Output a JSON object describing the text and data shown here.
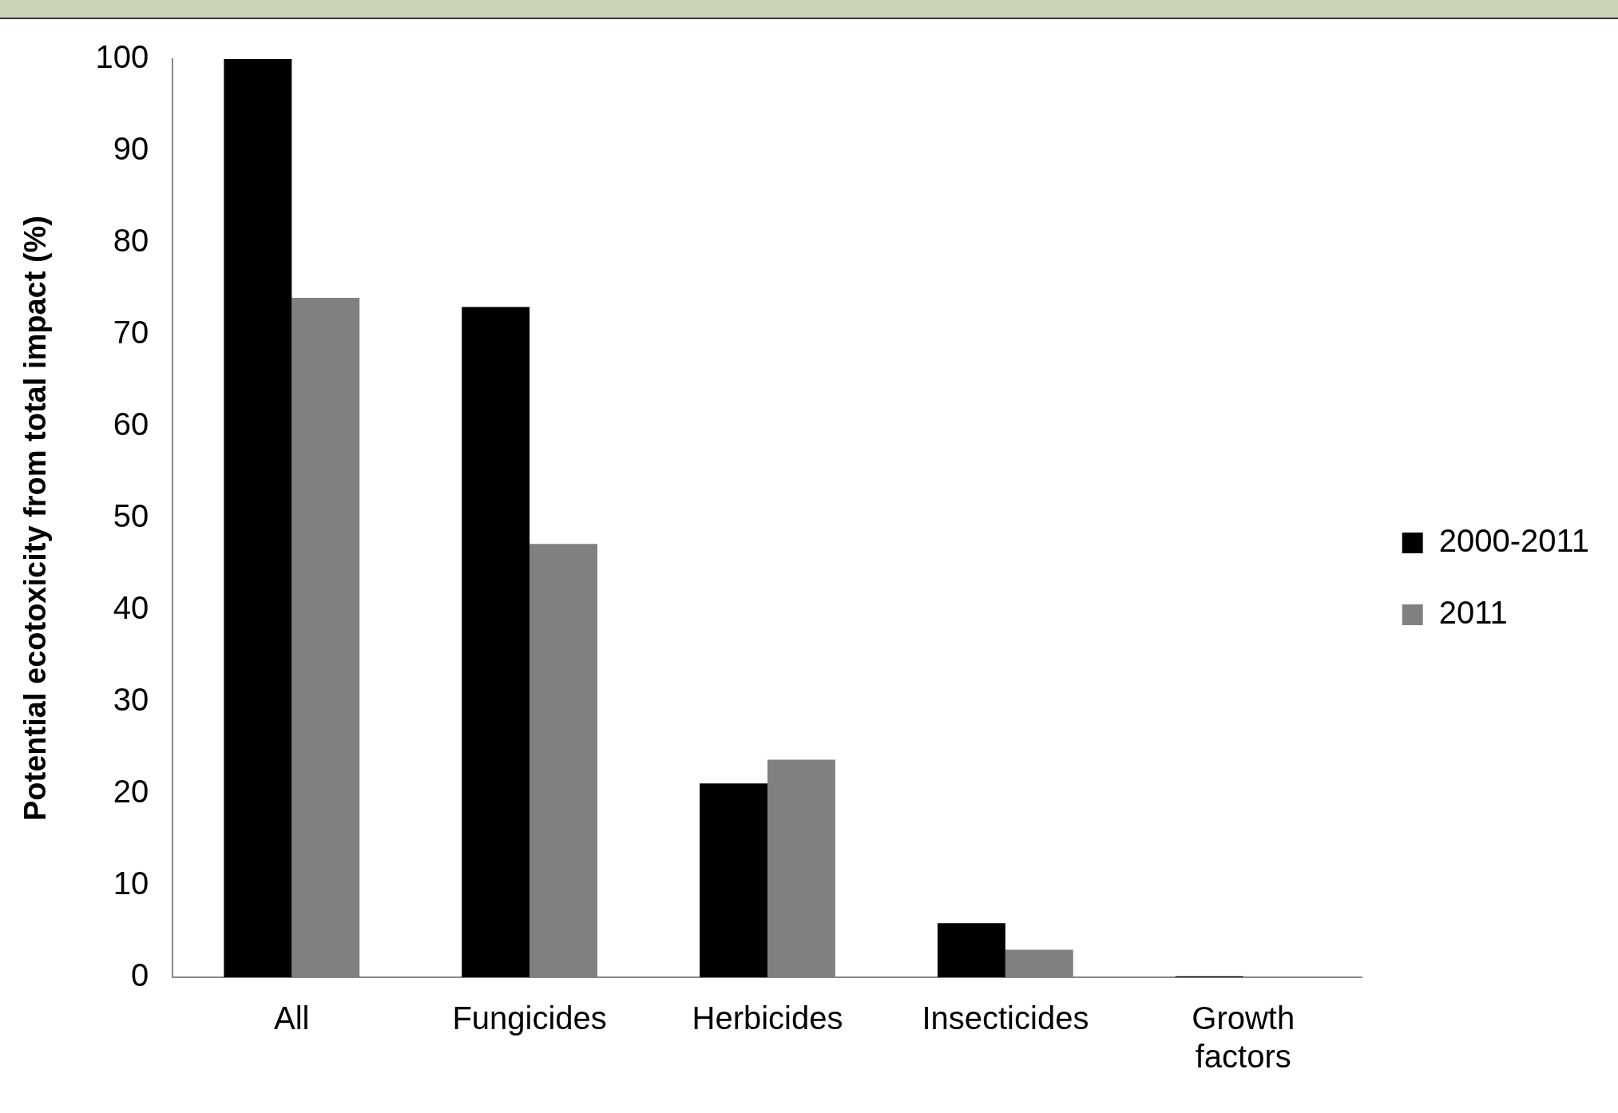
{
  "chart_data": {
    "type": "bar",
    "ylabel": "Potential ecotoxicity from total impact (%)",
    "categories": [
      "All",
      "Fungicides",
      "Herbicides",
      "Insecticides",
      "Growth factors"
    ],
    "series": [
      {
        "name": "2000-2011",
        "color": "#000000",
        "values": [
          100,
          73,
          21.1,
          5.9,
          0.1
        ]
      },
      {
        "name": "2011",
        "color": "#808080",
        "values": [
          74,
          47.2,
          23.7,
          3,
          null
        ]
      }
    ],
    "ylim": [
      0,
      100
    ],
    "yticks": [
      0,
      10,
      20,
      30,
      40,
      50,
      60,
      70,
      80,
      90,
      100
    ],
    "grid": false,
    "legend": "right"
  }
}
